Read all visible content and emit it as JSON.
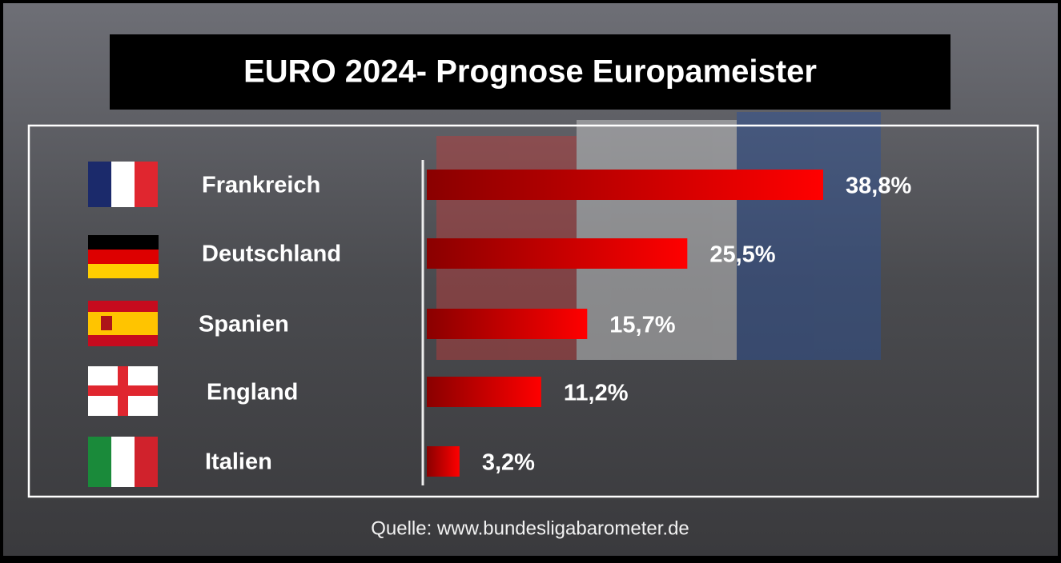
{
  "chart_data": {
    "type": "bar",
    "horizontal": true,
    "title": "EURO 2024- Prognose Europameister",
    "categories": [
      "Frankreich",
      "Deutschland",
      "Spanien",
      "England",
      "Italien"
    ],
    "values": [
      38.8,
      25.5,
      15.7,
      11.2,
      3.2
    ],
    "value_labels": [
      "38,8%",
      "25,5%",
      "15,7%",
      "11,2%",
      "3,2%"
    ],
    "color": "#ff0000",
    "source": "Quelle: www.bundesligabarometer.de"
  }
}
